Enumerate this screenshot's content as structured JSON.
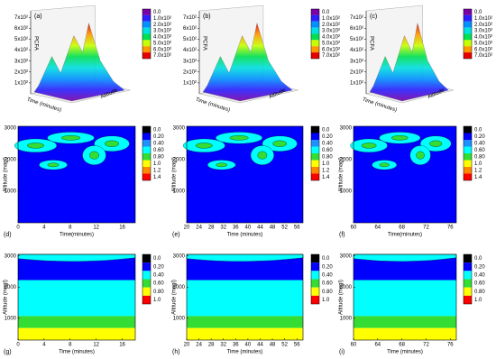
{
  "chart_data": [
    {
      "type": "surface3d",
      "panel": "(a)",
      "xlabel": "Time (minutes)",
      "ylabel": "Altitude",
      "zlabel": "PCFA",
      "zlim": [
        0,
        760
      ],
      "zticks": [
        {
          "value": 100,
          "label": "1x10²"
        },
        {
          "value": 200,
          "label": "2x10²"
        },
        {
          "value": 300,
          "label": "3x10²"
        },
        {
          "value": 400,
          "label": "4x10²"
        },
        {
          "value": 500,
          "label": "5x10²"
        },
        {
          "value": 600,
          "label": "6x10²"
        },
        {
          "value": 700,
          "label": "7x10²"
        }
      ],
      "colorbar": {
        "ticks": [
          {
            "value": 0,
            "label": "0.0"
          },
          {
            "value": 100,
            "label": "1.0x10²"
          },
          {
            "value": 200,
            "label": "2.0x10²"
          },
          {
            "value": 300,
            "label": "3.0x10²"
          },
          {
            "value": 400,
            "label": "4.0x10²"
          },
          {
            "value": 500,
            "label": "5.0x10²"
          },
          {
            "value": 600,
            "label": "6.0x10²"
          },
          {
            "value": 700,
            "label": "7.0x10²"
          }
        ],
        "colors": [
          "#7a00a8",
          "#2b1fff",
          "#0090ff",
          "#00e0e0",
          "#00e050",
          "#c8ff00",
          "#ff9900",
          "#e80000"
        ]
      }
    },
    {
      "type": "surface3d",
      "panel": "(b)",
      "xlabel": "Time (minutes)",
      "ylabel": "Altitude",
      "zlabel": "PCFA",
      "zlim": [
        0,
        760
      ],
      "zticks": [
        {
          "value": 100,
          "label": "1x10²"
        },
        {
          "value": 200,
          "label": "2x10²"
        },
        {
          "value": 300,
          "label": "3x10²"
        },
        {
          "value": 400,
          "label": "4x10²"
        },
        {
          "value": 500,
          "label": "5x10²"
        },
        {
          "value": 600,
          "label": "6x10²"
        },
        {
          "value": 700,
          "label": "7x10²"
        }
      ],
      "colorbar": {
        "ticks": [
          {
            "value": 0,
            "label": "0.0"
          },
          {
            "value": 100,
            "label": "1.0x10²"
          },
          {
            "value": 200,
            "label": "2.0x10²"
          },
          {
            "value": 300,
            "label": "3.0x10²"
          },
          {
            "value": 400,
            "label": "4.0x10²"
          },
          {
            "value": 500,
            "label": "5.0x10²"
          },
          {
            "value": 600,
            "label": "6.0x10²"
          },
          {
            "value": 700,
            "label": "7.0x10²"
          }
        ],
        "colors": [
          "#7a00a8",
          "#2b1fff",
          "#0090ff",
          "#00e0e0",
          "#00e050",
          "#c8ff00",
          "#ff9900",
          "#e80000"
        ]
      }
    },
    {
      "type": "surface3d",
      "panel": "(c)",
      "xlabel": "Time (minutes)",
      "ylabel": "Altitude",
      "zlabel": "PCFA",
      "zlim": [
        0,
        760
      ],
      "zticks": [
        {
          "value": 100,
          "label": "1x10²"
        },
        {
          "value": 200,
          "label": "2x10²"
        },
        {
          "value": 300,
          "label": "3x10²"
        },
        {
          "value": 400,
          "label": "4x10²"
        },
        {
          "value": 500,
          "label": "5x10²"
        },
        {
          "value": 600,
          "label": "6x10²"
        },
        {
          "value": 700,
          "label": "7x10²"
        }
      ],
      "colorbar": {
        "ticks": [
          {
            "value": 0,
            "label": "0.0"
          },
          {
            "value": 100,
            "label": "1.0x10²"
          },
          {
            "value": 200,
            "label": "2.0x10²"
          },
          {
            "value": 300,
            "label": "3.0x10²"
          },
          {
            "value": 400,
            "label": "4.0x10²"
          },
          {
            "value": 500,
            "label": "5.0x10²"
          },
          {
            "value": 600,
            "label": "6.0x10²"
          },
          {
            "value": 700,
            "label": "7.0x10²"
          }
        ],
        "colors": [
          "#7a00a8",
          "#2b1fff",
          "#0090ff",
          "#00e0e0",
          "#00e050",
          "#c8ff00",
          "#ff9900",
          "#e80000"
        ]
      }
    },
    {
      "type": "contour",
      "panel": "(d)",
      "xlabel": "Time(minutes)",
      "ylabel": "Altitude (magl)",
      "xlim": [
        0,
        18
      ],
      "xticks": [
        0,
        4,
        8,
        12,
        16
      ],
      "ylim": [
        0,
        3060
      ],
      "yticks": [
        1000,
        2000,
        3000
      ],
      "colorbar": {
        "ticks": [
          {
            "value": 0,
            "label": "0.0"
          },
          {
            "value": 0.2,
            "label": "0.20"
          },
          {
            "value": 0.4,
            "label": "0.40"
          },
          {
            "value": 0.6,
            "label": "0.60"
          },
          {
            "value": 0.8,
            "label": "0.80"
          },
          {
            "value": 1,
            "label": "1.0"
          },
          {
            "value": 1.2,
            "label": "1.2"
          },
          {
            "value": 1.4,
            "label": "1.4"
          }
        ],
        "colors": [
          "#000000",
          "#0000ff",
          "#1e90ff",
          "#00ffff",
          "#33dd33",
          "#ffff00",
          "#ff8800",
          "#ff0000"
        ]
      }
    },
    {
      "type": "contour",
      "panel": "(e)",
      "xlabel": "Time (minutes)",
      "ylabel": "Altitude (magl)",
      "xlim": [
        20,
        58
      ],
      "xticks": [
        20,
        24,
        28,
        32,
        36,
        40,
        44,
        48,
        52,
        56
      ],
      "ylim": [
        0,
        3060
      ],
      "yticks": [
        1000,
        2000,
        3000
      ],
      "colorbar": {
        "ticks": [
          {
            "value": 0,
            "label": "0.0"
          },
          {
            "value": 0.2,
            "label": "0.20"
          },
          {
            "value": 0.4,
            "label": "0.40"
          },
          {
            "value": 0.6,
            "label": "0.60"
          },
          {
            "value": 0.8,
            "label": "0.80"
          },
          {
            "value": 1,
            "label": "1.0"
          },
          {
            "value": 1.2,
            "label": "1.2"
          },
          {
            "value": 1.4,
            "label": "1.4"
          }
        ],
        "colors": [
          "#000000",
          "#0000ff",
          "#1e90ff",
          "#00ffff",
          "#33dd33",
          "#ffff00",
          "#ff8800",
          "#ff0000"
        ]
      }
    },
    {
      "type": "contour",
      "panel": "(f)",
      "xlabel": "Time(minutes)",
      "ylabel": "Altitude (magl)",
      "xlim": [
        60,
        77
      ],
      "xticks": [
        60,
        64,
        68,
        72,
        76
      ],
      "ylim": [
        0,
        3060
      ],
      "yticks": [
        1000,
        2000,
        3000
      ],
      "colorbar": {
        "ticks": [
          {
            "value": 0,
            "label": "0.0"
          },
          {
            "value": 0.2,
            "label": "0.20"
          },
          {
            "value": 0.4,
            "label": "0.40"
          },
          {
            "value": 0.6,
            "label": "0.60"
          },
          {
            "value": 0.8,
            "label": "0.80"
          },
          {
            "value": 1,
            "label": "1.0"
          },
          {
            "value": 1.2,
            "label": "1.2"
          },
          {
            "value": 1.4,
            "label": "1.4"
          }
        ],
        "colors": [
          "#000000",
          "#0000ff",
          "#1e90ff",
          "#00ffff",
          "#33dd33",
          "#ffff00",
          "#ff8800",
          "#ff0000"
        ]
      }
    },
    {
      "type": "bands",
      "panel": "(g)",
      "xlabel": "Time (minutes)",
      "ylabel": "Altitude (magl)",
      "xlim": [
        0,
        18
      ],
      "xticks": [
        0,
        4,
        8,
        12,
        16
      ],
      "ylim": [
        300,
        3050
      ],
      "yticks": [
        1000,
        2000,
        3000
      ],
      "colorbar": {
        "ticks": [
          {
            "value": 0,
            "label": "0.0"
          },
          {
            "value": 0.2,
            "label": "0.20"
          },
          {
            "value": 0.4,
            "label": "0.40"
          },
          {
            "value": 0.6,
            "label": "0.60"
          },
          {
            "value": 0.8,
            "label": "0.80"
          },
          {
            "value": 1,
            "label": "1.0"
          }
        ],
        "colors": [
          "#000000",
          "#0000ff",
          "#00ffff",
          "#33dd33",
          "#ffff00",
          "#ff0000"
        ]
      }
    },
    {
      "type": "bands",
      "panel": "(h)",
      "xlabel": "Time (minutes)",
      "ylabel": "Altitude (magl)",
      "xlim": [
        20,
        58
      ],
      "xticks": [
        20,
        24,
        28,
        32,
        36,
        40,
        44,
        48,
        52,
        56
      ],
      "ylim": [
        300,
        3050
      ],
      "yticks": [
        1000,
        2000,
        3000
      ],
      "colorbar": {
        "ticks": [
          {
            "value": 0,
            "label": "0.0"
          },
          {
            "value": 0.2,
            "label": "0.20"
          },
          {
            "value": 0.4,
            "label": "0.40"
          },
          {
            "value": 0.6,
            "label": "0.60"
          },
          {
            "value": 0.8,
            "label": "0.80"
          },
          {
            "value": 1,
            "label": "1.0"
          }
        ],
        "colors": [
          "#000000",
          "#0000ff",
          "#00ffff",
          "#33dd33",
          "#ffff00",
          "#ff0000"
        ]
      }
    },
    {
      "type": "bands",
      "panel": "(i)",
      "xlabel": "Time (minutes)",
      "ylabel": "Altitude (magl)",
      "xlim": [
        60,
        77
      ],
      "xticks": [
        60,
        64,
        68,
        72,
        76
      ],
      "ylim": [
        300,
        3050
      ],
      "yticks": [
        1000,
        2000,
        3000
      ],
      "colorbar": {
        "ticks": [
          {
            "value": 0,
            "label": "0.0"
          },
          {
            "value": 0.2,
            "label": "0.20"
          },
          {
            "value": 0.4,
            "label": "0.40"
          },
          {
            "value": 0.6,
            "label": "0.60"
          },
          {
            "value": 0.8,
            "label": "0.80"
          },
          {
            "value": 1,
            "label": "1.0"
          }
        ],
        "colors": [
          "#000000",
          "#0000ff",
          "#00ffff",
          "#33dd33",
          "#ffff00",
          "#ff0000"
        ]
      }
    }
  ]
}
